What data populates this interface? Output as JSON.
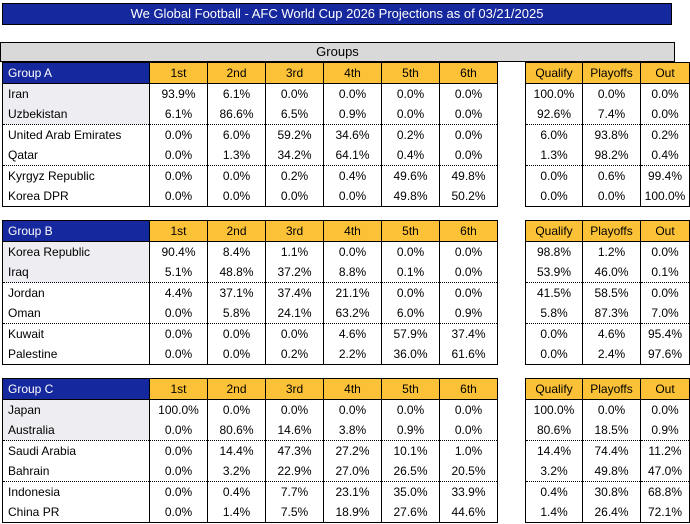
{
  "title": "We Global Football - AFC World Cup 2026 Projections as of 03/21/2025",
  "section_header": "Groups",
  "colors": {
    "header_blue": "#16289E",
    "gold": "#FCC237",
    "section_gray": "#D9D9D9",
    "row_tint": "#EDEDF2"
  },
  "position_headers": [
    "1st",
    "2nd",
    "3rd",
    "4th",
    "5th",
    "6th"
  ],
  "outcome_headers": [
    "Qualify",
    "Playoffs",
    "Out"
  ],
  "groups": [
    {
      "name": "Group A",
      "teams": [
        {
          "name": "Iran",
          "positions": [
            "93.9%",
            "6.1%",
            "0.0%",
            "0.0%",
            "0.0%",
            "0.0%"
          ],
          "outcomes": [
            "100.0%",
            "0.0%",
            "0.0%"
          ]
        },
        {
          "name": "Uzbekistan",
          "positions": [
            "6.1%",
            "86.6%",
            "6.5%",
            "0.9%",
            "0.0%",
            "0.0%"
          ],
          "outcomes": [
            "92.6%",
            "7.4%",
            "0.0%"
          ]
        },
        {
          "name": "United Arab Emirates",
          "positions": [
            "0.0%",
            "6.0%",
            "59.2%",
            "34.6%",
            "0.2%",
            "0.0%"
          ],
          "outcomes": [
            "6.0%",
            "93.8%",
            "0.2%"
          ]
        },
        {
          "name": "Qatar",
          "positions": [
            "0.0%",
            "1.3%",
            "34.2%",
            "64.1%",
            "0.4%",
            "0.0%"
          ],
          "outcomes": [
            "1.3%",
            "98.2%",
            "0.4%"
          ]
        },
        {
          "name": "Kyrgyz Republic",
          "positions": [
            "0.0%",
            "0.0%",
            "0.2%",
            "0.4%",
            "49.6%",
            "49.8%"
          ],
          "outcomes": [
            "0.0%",
            "0.6%",
            "99.4%"
          ]
        },
        {
          "name": "Korea DPR",
          "positions": [
            "0.0%",
            "0.0%",
            "0.0%",
            "0.0%",
            "49.8%",
            "50.2%"
          ],
          "outcomes": [
            "0.0%",
            "0.0%",
            "100.0%"
          ]
        }
      ]
    },
    {
      "name": "Group B",
      "teams": [
        {
          "name": "Korea Republic",
          "positions": [
            "90.4%",
            "8.4%",
            "1.1%",
            "0.0%",
            "0.0%",
            "0.0%"
          ],
          "outcomes": [
            "98.8%",
            "1.2%",
            "0.0%"
          ]
        },
        {
          "name": "Iraq",
          "positions": [
            "5.1%",
            "48.8%",
            "37.2%",
            "8.8%",
            "0.1%",
            "0.0%"
          ],
          "outcomes": [
            "53.9%",
            "46.0%",
            "0.1%"
          ]
        },
        {
          "name": "Jordan",
          "positions": [
            "4.4%",
            "37.1%",
            "37.4%",
            "21.1%",
            "0.0%",
            "0.0%"
          ],
          "outcomes": [
            "41.5%",
            "58.5%",
            "0.0%"
          ]
        },
        {
          "name": "Oman",
          "positions": [
            "0.0%",
            "5.8%",
            "24.1%",
            "63.2%",
            "6.0%",
            "0.9%"
          ],
          "outcomes": [
            "5.8%",
            "87.3%",
            "7.0%"
          ]
        },
        {
          "name": "Kuwait",
          "positions": [
            "0.0%",
            "0.0%",
            "0.0%",
            "4.6%",
            "57.9%",
            "37.4%"
          ],
          "outcomes": [
            "0.0%",
            "4.6%",
            "95.4%"
          ]
        },
        {
          "name": "Palestine",
          "positions": [
            "0.0%",
            "0.0%",
            "0.2%",
            "2.2%",
            "36.0%",
            "61.6%"
          ],
          "outcomes": [
            "0.0%",
            "2.4%",
            "97.6%"
          ]
        }
      ]
    },
    {
      "name": "Group C",
      "teams": [
        {
          "name": "Japan",
          "positions": [
            "100.0%",
            "0.0%",
            "0.0%",
            "0.0%",
            "0.0%",
            "0.0%"
          ],
          "outcomes": [
            "100.0%",
            "0.0%",
            "0.0%"
          ]
        },
        {
          "name": "Australia",
          "positions": [
            "0.0%",
            "80.6%",
            "14.6%",
            "3.8%",
            "0.9%",
            "0.0%"
          ],
          "outcomes": [
            "80.6%",
            "18.5%",
            "0.9%"
          ]
        },
        {
          "name": "Saudi Arabia",
          "positions": [
            "0.0%",
            "14.4%",
            "47.3%",
            "27.2%",
            "10.1%",
            "1.0%"
          ],
          "outcomes": [
            "14.4%",
            "74.4%",
            "11.2%"
          ]
        },
        {
          "name": "Bahrain",
          "positions": [
            "0.0%",
            "3.2%",
            "22.9%",
            "27.0%",
            "26.5%",
            "20.5%"
          ],
          "outcomes": [
            "3.2%",
            "49.8%",
            "47.0%"
          ]
        },
        {
          "name": "Indonesia",
          "positions": [
            "0.0%",
            "0.4%",
            "7.7%",
            "23.1%",
            "35.0%",
            "33.9%"
          ],
          "outcomes": [
            "0.4%",
            "30.8%",
            "68.8%"
          ]
        },
        {
          "name": "China PR",
          "positions": [
            "0.0%",
            "1.4%",
            "7.5%",
            "18.9%",
            "27.6%",
            "44.6%"
          ],
          "outcomes": [
            "1.4%",
            "26.4%",
            "72.1%"
          ]
        }
      ]
    }
  ]
}
